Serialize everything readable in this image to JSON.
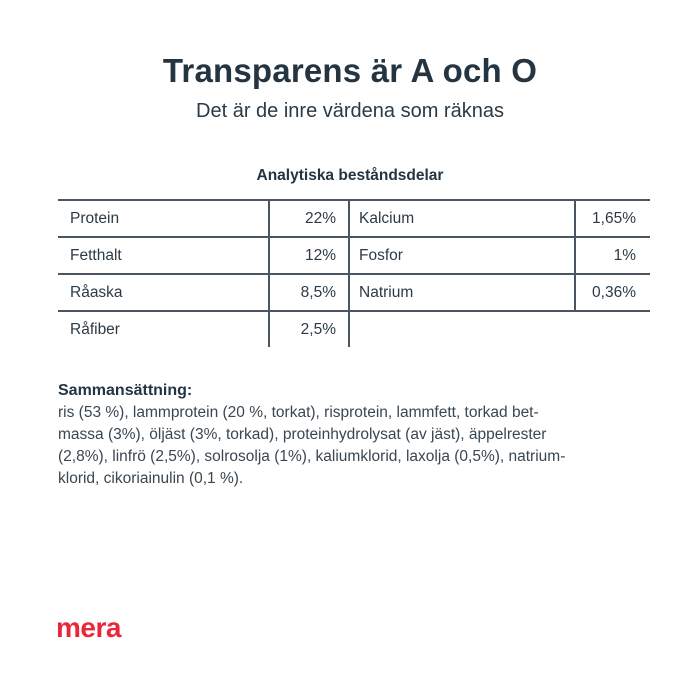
{
  "header": {
    "title": "Transparens är A och O",
    "subtitle": "Det är de inre värdena som räknas"
  },
  "analysis": {
    "title": "Analytiska beståndsdelar",
    "rows": [
      {
        "left_name": "Protein",
        "left_value": "22%",
        "right_name": "Kalcium",
        "right_value": "1,65%"
      },
      {
        "left_name": "Fetthalt",
        "left_value": "12%",
        "right_name": "Fosfor",
        "right_value": "1%"
      },
      {
        "left_name": "Råaska",
        "left_value": "8,5%",
        "right_name": "Natrium",
        "right_value": "0,36%"
      },
      {
        "left_name": "Råfiber",
        "left_value": "2,5%",
        "right_name": "",
        "right_value": ""
      }
    ]
  },
  "composition": {
    "title": "Sammansättning:",
    "lines": [
      "ris (53 %), lammprotein (20 %, torkat), risprotein, lammfett, torkad bet-",
      "massa (3%), öljäst (3%, torkad), proteinhydrolysat (av jäst), äppelrester",
      "(2,8%), linfrö (2,5%), solrosolja (1%), kaliumklorid, laxolja (0,5%), natrium-",
      "klorid, cikoriainulin (0,1 %)."
    ]
  },
  "brand": {
    "logo_text": "mera",
    "color": "#e8283a"
  }
}
